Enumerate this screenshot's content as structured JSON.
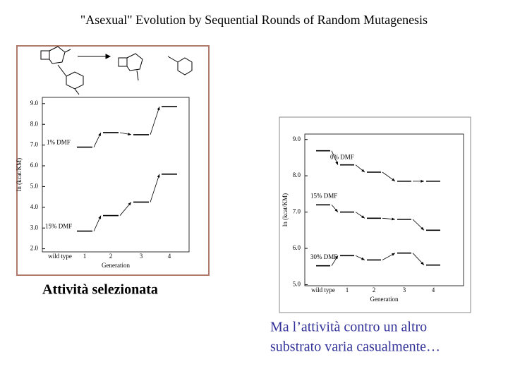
{
  "title": "\"Asexual\" Evolution by Sequential Rounds of Random Mutagenesis",
  "caption_left": "Attività selezionata",
  "caption_right": [
    "Ma l’attività contro un altro",
    "substrato varia casualmente…"
  ],
  "chart_data": [
    {
      "type": "step",
      "x_label": "Generation",
      "y_label": "ln (kcat/KM)",
      "categories": [
        "wild type",
        "1",
        "2",
        "3",
        "4"
      ],
      "ylim": [
        1.85,
        9.3
      ],
      "yticks": [
        {
          "value": 2,
          "label": "2.0"
        },
        {
          "value": 3,
          "label": "3.0"
        },
        {
          "value": 4,
          "label": "4.0"
        },
        {
          "value": 5,
          "label": "5.0"
        },
        {
          "value": 6,
          "label": "6.0"
        },
        {
          "value": 7,
          "label": "7.0"
        },
        {
          "value": 8,
          "label": "8.0"
        },
        {
          "value": 9,
          "label": "9.0"
        }
      ],
      "series": [
        {
          "name": "1% DMF",
          "color": "#000000",
          "values": [
            null,
            6.9,
            7.6,
            7.5,
            8.85
          ]
        },
        {
          "name": "15% DMF",
          "color": "#000000",
          "values": [
            null,
            2.85,
            3.6,
            4.25,
            5.6
          ]
        }
      ]
    },
    {
      "type": "step",
      "x_label": "Generation",
      "y_label": "ln (kcat/KM)",
      "categories": [
        "wild type",
        "1",
        "2",
        "3",
        "4"
      ],
      "ylim": [
        4.97,
        9.15
      ],
      "yticks": [
        {
          "value": 5,
          "label": "5.0"
        },
        {
          "value": 6,
          "label": "6.0"
        },
        {
          "value": 7,
          "label": "7.0"
        },
        {
          "value": 8,
          "label": "8.0"
        },
        {
          "value": 9,
          "label": "9.0"
        }
      ],
      "series": [
        {
          "name": "0% DMF",
          "color": "#000000",
          "values": [
            8.69,
            8.3,
            8.1,
            7.85,
            7.85
          ]
        },
        {
          "name": "15% DMF",
          "color": "#000000",
          "values": [
            7.2,
            7.0,
            6.83,
            6.8,
            6.5
          ]
        },
        {
          "name": "30% DMF",
          "color": "#000000",
          "values": [
            5.52,
            5.8,
            5.68,
            5.87,
            5.54
          ]
        }
      ]
    }
  ]
}
